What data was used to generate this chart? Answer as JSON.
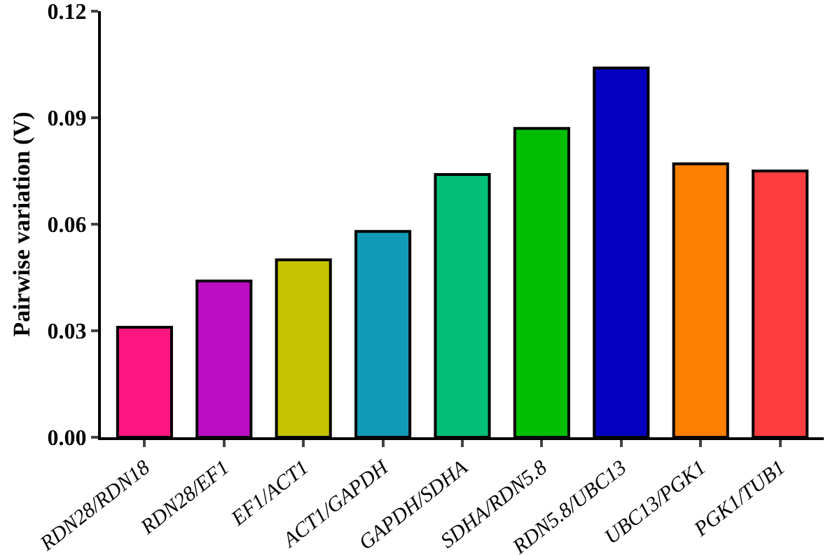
{
  "chart_data": {
    "type": "bar",
    "ylabel": "Pairwise variation (V)",
    "categories": [
      "RDN28/RDN18",
      "RDN28/EF1",
      "EF1/ACT1",
      "ACT1/GAPDH",
      "GAPDH/SDHA",
      "SDHA/RDN5.8",
      "RDN5.8/UBC13",
      "UBC13/PGK1",
      "PGK1/TUB1"
    ],
    "values": [
      0.031,
      0.044,
      0.05,
      0.058,
      0.074,
      0.087,
      0.104,
      0.077,
      0.075
    ],
    "colors": [
      "#fc1681",
      "#bd0dc4",
      "#c4c300",
      "#119ab6",
      "#03bf77",
      "#01bd04",
      "#0400bf",
      "#ff7f00",
      "#fd3d3f"
    ],
    "ylim": [
      0,
      0.12
    ],
    "yticks": [
      {
        "value": 0,
        "label": "0.00"
      },
      0.03,
      0.06,
      0.09,
      0.12
    ]
  }
}
